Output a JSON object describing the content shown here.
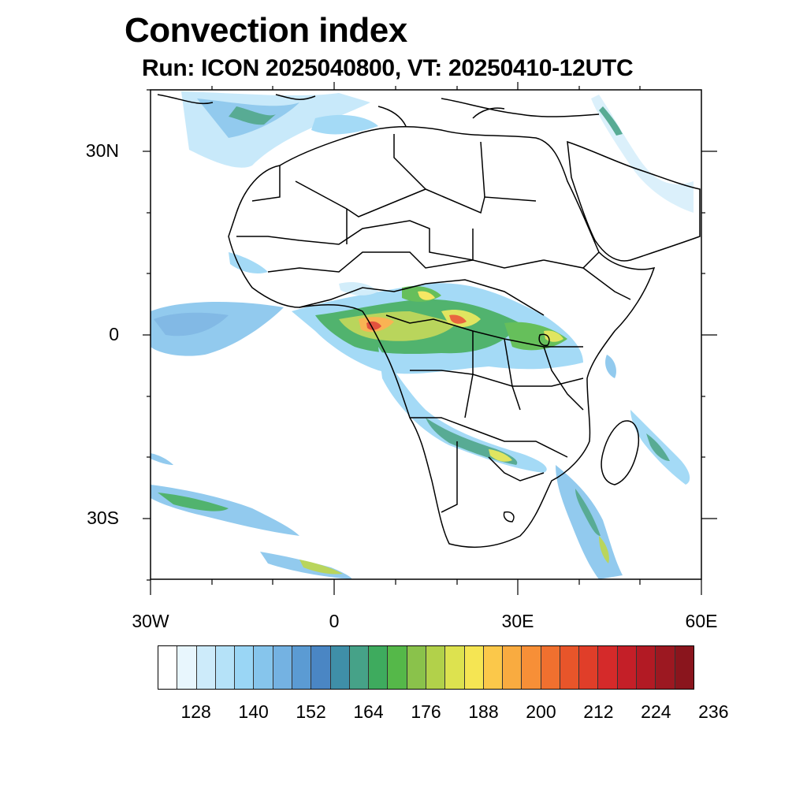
{
  "title": "Convection index",
  "subtitle": "Run: ICON 2025040800,  VT: 20250410-12UTC",
  "map": {
    "lat_labels": [
      "30N",
      "0",
      "30S"
    ],
    "lon_labels": [
      "30W",
      "0",
      "30E",
      "60E"
    ]
  },
  "colorbar": {
    "colors": [
      "#ffffff",
      "#e8f6fd",
      "#cdebfa",
      "#b5e2f8",
      "#9ad6f5",
      "#86c5ec",
      "#74b2e2",
      "#5b9bd3",
      "#4a86c4",
      "#3f8fa8",
      "#46a288",
      "#3eab5e",
      "#55b849",
      "#8ac24b",
      "#b2d14a",
      "#dde24f",
      "#f5e553",
      "#fbc84a",
      "#f9ab40",
      "#f78f37",
      "#f0702f",
      "#e8552a",
      "#e03e29",
      "#d52a2a",
      "#c41f28",
      "#b21a24",
      "#9c1821",
      "#8a151d"
    ],
    "labels": [
      "128",
      "140",
      "152",
      "164",
      "176",
      "188",
      "200",
      "212",
      "224",
      "236"
    ]
  }
}
